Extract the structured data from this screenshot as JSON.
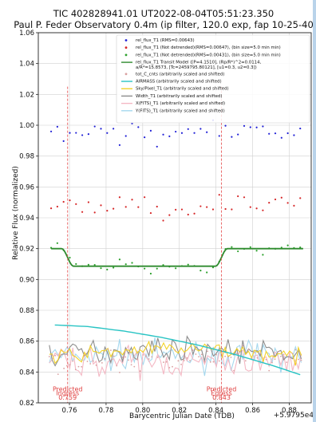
{
  "chart_data": {
    "type": "scatter",
    "title_line1": "TIC 402828941.01   UT2022-08-04T05:51:23.350",
    "title_line2": "Paul P. Feder Observatory 0.4m (ip filter, 120.0 exp, fap 10-25-40",
    "xlabel": "Barycentric Julian Date (TDB)",
    "ylabel": "Relative Flux (normalized)",
    "x_offset_label": "+5.9795e4",
    "xlim": [
      0.743,
      0.892
    ],
    "ylim": [
      0.82,
      1.06
    ],
    "x_ticks": [
      0.76,
      0.78,
      0.8,
      0.82,
      0.84,
      0.86,
      0.88
    ],
    "x_tick_labels": [
      "0.76",
      "0.78",
      "0.80",
      "0.82",
      "0.84",
      "0.86",
      "0.88"
    ],
    "y_ticks": [
      0.82,
      0.84,
      0.86,
      0.88,
      0.9,
      0.92,
      0.94,
      0.96,
      0.98,
      1.0,
      1.02,
      1.04,
      1.06
    ],
    "y_tick_labels": [
      "0.82",
      "0.84",
      "0.86",
      "0.88",
      "0.90",
      "0.92",
      "0.94",
      "0.96",
      "0.98",
      "1.00",
      "1.02",
      "1.04",
      "1.06"
    ],
    "grid": true,
    "legend_position": "top-right",
    "legend": [
      {
        "label": "rel_flux_T1 (RMS=0.00643)",
        "color": "#1f1fd6",
        "style": "dot"
      },
      {
        "label": "rel_flux_T1 (Not detrended)(RMS=0.00647), (bin size=5.0 min min)",
        "color": "#d62728",
        "style": "dot"
      },
      {
        "label": "rel_flux_T1 (Not detrended)(RMS=0.00431), (bin size=5.0 min min)",
        "color": "#2ca02c",
        "style": "dot"
      },
      {
        "label": "rel_flux_T1 Transit Model ([P=4.1510], (Rp/R*)^2=0.0114,",
        "label2": "a/R*=15.8573, [Tc=2459795.80121], [u1=0.3, u2=0.3])",
        "color": "#2e8b2e",
        "style": "line"
      },
      {
        "label": "tot_C_cnts (arbitrarily scaled and shifted)",
        "color": "#d9a0a0",
        "style": "dot"
      },
      {
        "label": "AIRMASS (arbitrarily scaled and shifted)",
        "color": "#29c4c4",
        "style": "line"
      },
      {
        "label": "Sky/Pixel_T1 (arbitrarily scaled and shifted)",
        "color": "#f2d22a",
        "style": "line"
      },
      {
        "label": "Width_T1 (arbitrarily scaled and shifted)",
        "color": "#8c8c8c",
        "style": "line"
      },
      {
        "label": "X(FITS)_T1 (arbitrarily scaled and shifted)",
        "color": "#f4b8c4",
        "style": "line"
      },
      {
        "label": "Y(FITS)_T1 (arbitrarily scaled and shifted)",
        "color": "#a6d8ee",
        "style": "line"
      }
    ],
    "predicted": [
      {
        "label1": "Predicted",
        "label2": "Ingress",
        "value_label": "0.759",
        "x": 0.759
      },
      {
        "label1": "Predicted",
        "label2": "Egress",
        "value_label": "0.843",
        "x": 0.843
      }
    ],
    "transit_model": {
      "baseline": 0.92,
      "depth": 0.0114,
      "ingress": 0.759,
      "egress": 0.843,
      "ingress_duration": 0.0065
    },
    "airmass": {
      "x": [
        0.752,
        0.77,
        0.79,
        0.81,
        0.83,
        0.85,
        0.87,
        0.888
      ],
      "y": [
        0.8705,
        0.8695,
        0.8665,
        0.8625,
        0.8575,
        0.8515,
        0.8445,
        0.8375
      ]
    },
    "series_summary": [
      {
        "name": "rel_flux_T1 (RMS=0.00643)",
        "level": 0.995,
        "scatter": 0.0064
      },
      {
        "name": "rel_flux_T1 (Not detrended)(RMS=0.00647)",
        "level": 0.951,
        "scatter": 0.0065
      },
      {
        "name": "rel_flux_T1 (Not detrended)(RMS=0.00431)",
        "level": 0.912,
        "scatter": 0.0043
      }
    ]
  }
}
